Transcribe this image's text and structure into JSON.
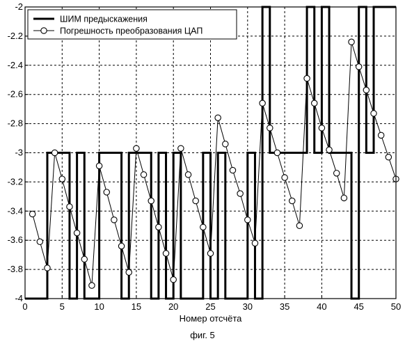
{
  "chart_data": {
    "type": "line",
    "xlabel": "Номер отсчёта",
    "ylabel": "",
    "xlim": [
      0,
      50
    ],
    "ylim": [
      -4,
      -2
    ],
    "xticks": [
      0,
      5,
      10,
      15,
      20,
      25,
      30,
      35,
      40,
      45,
      50
    ],
    "yticks": [
      -2,
      -2.2,
      -2.4,
      -2.6,
      -2.8,
      -3,
      -3.2,
      -3.4,
      -3.6,
      -3.8,
      -4
    ],
    "grid": true,
    "legend_position": "top-left",
    "series": [
      {
        "name": "ШИМ предыскажения",
        "style": "step",
        "color": "#000000",
        "x": [
          0,
          3,
          3,
          6,
          6,
          7,
          7,
          8,
          8,
          10,
          10,
          13,
          13,
          14,
          14,
          17,
          17,
          18,
          18,
          19,
          19,
          20,
          20,
          21,
          21,
          24,
          24,
          25,
          25,
          26,
          26,
          27,
          27,
          30,
          30,
          31,
          31,
          32,
          32,
          33,
          33,
          38,
          38,
          39,
          39,
          40,
          40,
          41,
          41,
          44,
          44,
          45,
          45,
          46,
          46,
          47,
          47,
          50
        ],
        "y": [
          -4,
          -4,
          -3,
          -3,
          -4,
          -4,
          -3,
          -3,
          -4,
          -4,
          -3,
          -3,
          -4,
          -4,
          -3,
          -3,
          -4,
          -4,
          -3,
          -3,
          -4,
          -4,
          -3,
          -3,
          -4,
          -4,
          -3,
          -3,
          -4,
          -4,
          -3,
          -3,
          -4,
          -4,
          -3,
          -3,
          -4,
          -4,
          -2,
          -2,
          -3,
          -3,
          -2,
          -2,
          -3,
          -3,
          -2,
          -2,
          -3,
          -3,
          -4,
          -4,
          -2,
          -2,
          -3,
          -3,
          -2,
          -2
        ]
      },
      {
        "name": "Погрешность преобразования ЦАП",
        "style": "line-circle",
        "color": "#000000",
        "x": [
          1,
          2,
          3,
          4,
          5,
          6,
          7,
          8,
          9,
          10,
          11,
          12,
          13,
          14,
          15,
          16,
          17,
          18,
          19,
          20,
          21,
          22,
          23,
          24,
          25,
          26,
          27,
          28,
          29,
          30,
          31,
          32,
          33,
          34,
          35,
          36,
          37,
          38,
          39,
          40,
          41,
          42,
          43,
          44,
          45,
          46,
          47,
          48,
          49,
          50
        ],
        "y": [
          -3.42,
          -3.61,
          -3.79,
          -3.0,
          -3.18,
          -3.37,
          -3.55,
          -3.73,
          -3.91,
          -3.09,
          -3.27,
          -3.46,
          -3.64,
          -3.82,
          -2.97,
          -3.15,
          -3.33,
          -3.51,
          -3.69,
          -3.87,
          -2.97,
          -3.15,
          -3.33,
          -3.51,
          -3.69,
          -2.76,
          -2.94,
          -3.12,
          -3.28,
          -3.46,
          -3.62,
          -2.66,
          -2.83,
          -3.0,
          -3.17,
          -3.33,
          -3.5,
          -2.49,
          -2.66,
          -2.83,
          -2.98,
          -3.14,
          -3.31,
          -2.24,
          -2.41,
          -2.57,
          -2.73,
          -2.88,
          -3.03,
          -3.18
        ]
      }
    ],
    "caption": "фиг. 5"
  }
}
